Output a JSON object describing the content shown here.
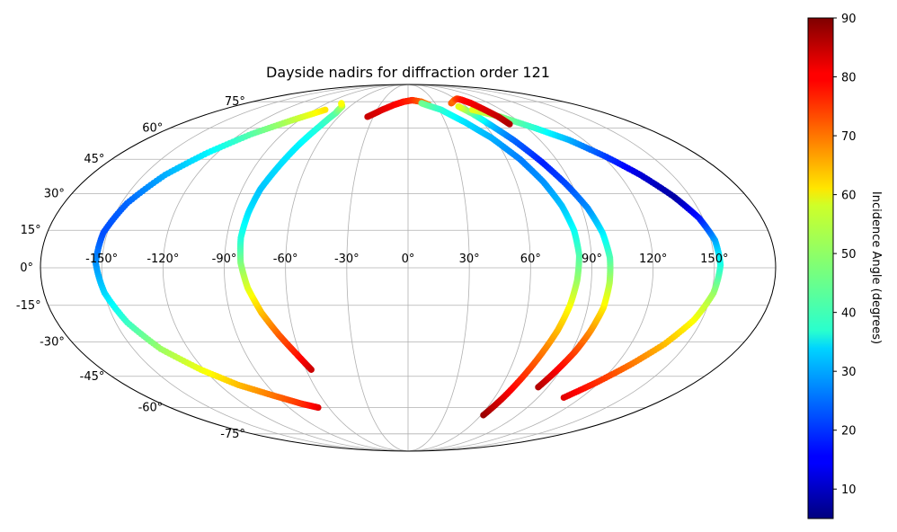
{
  "chart_data": {
    "type": "scatter",
    "projection": "mollweide",
    "title": "Dayside nadirs for diffraction order 121",
    "x_ticks": [
      "-150°",
      "-120°",
      "-90°",
      "-60°",
      "-30°",
      "0°",
      "30°",
      "60°",
      "90°",
      "120°",
      "150°"
    ],
    "y_ticks": [
      "75°",
      "60°",
      "45°",
      "30°",
      "15°",
      "0°",
      "-15°",
      "-30°",
      "-45°",
      "-60°",
      "-75°"
    ],
    "grid": true,
    "colorbar": {
      "label": "Incidence Angle (degrees)",
      "range": [
        5,
        90
      ],
      "ticks": [
        "10",
        "20",
        "30",
        "40",
        "50",
        "60",
        "70",
        "80",
        "90"
      ],
      "colormap": "jet",
      "placement": "right"
    },
    "x_range": [
      -180,
      180
    ],
    "y_range": [
      -90,
      90
    ],
    "tracks": [
      {
        "lon": [
          -68,
          -78,
          -92,
          -108,
          -122,
          -135,
          -144,
          -150,
          -153,
          -152,
          -147,
          -138,
          -126,
          -112,
          -96,
          -80
        ],
        "lat": [
          -60,
          -58,
          -54,
          -49,
          -42,
          -33,
          -22,
          -10,
          2,
          14,
          26,
          38,
          48,
          57,
          64,
          70
        ],
        "incidence": [
          82,
          76,
          70,
          64,
          57,
          50,
          42,
          34,
          28,
          22,
          24,
          30,
          36,
          44,
          52,
          60
        ]
      },
      {
        "lon": [
          -57,
          -62,
          -68,
          -74,
          -79,
          -82,
          -83,
          -82,
          -80,
          -76,
          -72,
          -68,
          -66,
          -68,
          -74
        ],
        "lat": [
          -42,
          -35,
          -27,
          -18,
          -8,
          2,
          12,
          22,
          32,
          42,
          52,
          61,
          68,
          72,
          74
        ],
        "incidence": [
          84,
          78,
          72,
          64,
          56,
          48,
          40,
          35,
          32,
          34,
          36,
          40,
          44,
          50,
          58
        ]
      },
      {
        "lon": [
          -35,
          -25,
          -15,
          -5,
          5,
          15,
          22
        ],
        "lat": [
          66,
          70,
          73,
          75,
          76,
          75,
          73
        ],
        "incidence": [
          84,
          82,
          80,
          78,
          76,
          72,
          68
        ]
      },
      {
        "lon": [
          62,
          66,
          70,
          74,
          78,
          81,
          83,
          84,
          83,
          80,
          75,
          68,
          58,
          46,
          32,
          15
        ],
        "lat": [
          -64,
          -55,
          -45,
          -35,
          -25,
          -15,
          -5,
          5,
          15,
          25,
          35,
          45,
          55,
          63,
          70,
          74
        ],
        "incidence": [
          88,
          82,
          76,
          70,
          64,
          58,
          50,
          44,
          38,
          32,
          28,
          26,
          30,
          34,
          40,
          46
        ]
      },
      {
        "lon": [
          84,
          88,
          92,
          95,
          98,
          99,
          99,
          97,
          93,
          87,
          80,
          72,
          64,
          58,
          52
        ],
        "lat": [
          -50,
          -42,
          -34,
          -26,
          -16,
          -6,
          4,
          14,
          24,
          34,
          44,
          54,
          62,
          68,
          72
        ],
        "incidence": [
          86,
          80,
          74,
          68,
          60,
          52,
          44,
          36,
          28,
          22,
          18,
          24,
          32,
          44,
          56
        ]
      },
      {
        "lon": [
          108,
          118,
          128,
          138,
          146,
          151,
          153,
          152,
          148,
          141,
          132,
          122,
          110,
          96,
          80,
          62
        ],
        "lat": [
          -55,
          -48,
          -40,
          -31,
          -21,
          -10,
          1,
          11,
          20,
          29,
          38,
          46,
          54,
          60,
          66,
          70
        ],
        "incidence": [
          82,
          76,
          70,
          64,
          58,
          50,
          40,
          30,
          18,
          8,
          12,
          20,
          30,
          40,
          48,
          56
        ]
      },
      {
        "lon": [
          48,
          56,
          62,
          66,
          70,
          74,
          78,
          80
        ],
        "lat": [
          74,
          76,
          77,
          76,
          74,
          70,
          66,
          62
        ],
        "incidence": [
          72,
          70,
          74,
          78,
          80,
          82,
          84,
          86
        ]
      }
    ]
  }
}
